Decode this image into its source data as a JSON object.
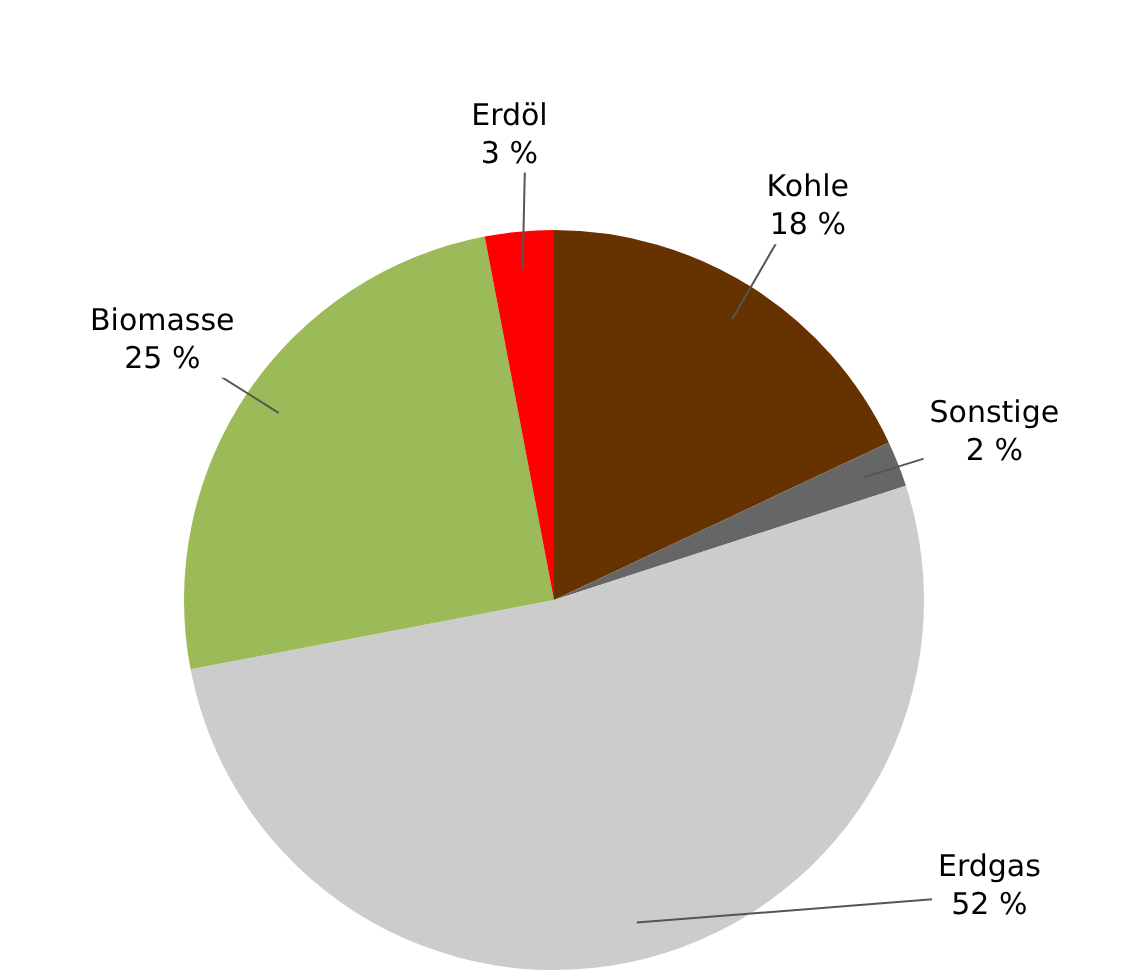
{
  "chart_data": {
    "type": "pie",
    "categories": [
      "Kohle",
      "Sonstige",
      "Erdgas",
      "Biomasse",
      "Erdöl"
    ],
    "values": [
      18,
      2,
      52,
      25,
      3
    ],
    "value_labels": [
      "18 %",
      "2 %",
      "52 %",
      "25 %",
      "3 %"
    ],
    "colors": [
      "#663300",
      "#666666",
      "#cccccc",
      "#9bbb59",
      "#ff0000"
    ],
    "legend": false
  }
}
